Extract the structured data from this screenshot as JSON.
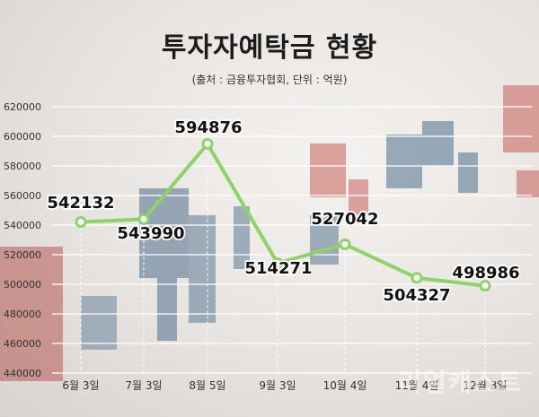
{
  "chart_data": {
    "type": "line",
    "title": "투자자예탁금 현황",
    "subtitle": "(출처 : 금융투자협회, 단위 : 억원)",
    "categories": [
      "6월 3일",
      "7월 3일",
      "8월 5일",
      "9월 3일",
      "10월 4일",
      "11월 4일",
      "12월 3일"
    ],
    "values": [
      542132,
      543990,
      594876,
      514271,
      527042,
      504327,
      498986
    ],
    "data_labels": [
      "542132",
      "543990",
      "594876",
      "514271",
      "527042",
      "504327",
      "498986"
    ],
    "yticks": [
      "620000",
      "600000",
      "580000",
      "560000",
      "540000",
      "520000",
      "500000",
      "480000",
      "460000",
      "440000"
    ],
    "ylim": [
      440000,
      620000
    ],
    "grid": true,
    "line_color": "#8fd16a",
    "marker_fill": "#ffffff"
  },
  "watermark": "리얼캐스트"
}
